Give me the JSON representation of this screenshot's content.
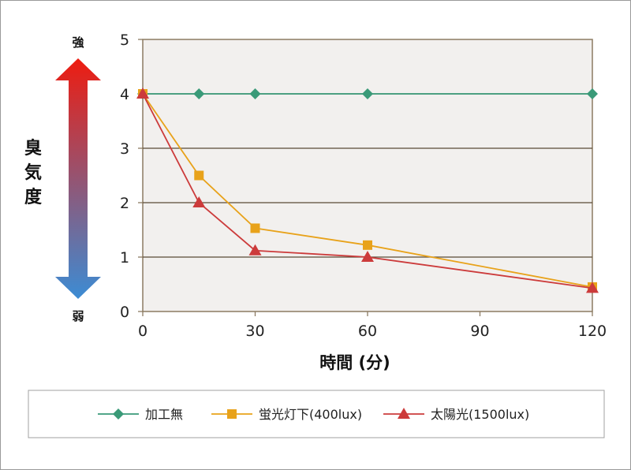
{
  "chart_data": {
    "type": "line",
    "xlabel": "時間 (分)",
    "ylabel": "臭気度",
    "y_strong_label": "強",
    "y_weak_label": "弱",
    "xlim": [
      0,
      120
    ],
    "ylim": [
      0,
      5
    ],
    "x_ticks": [
      0,
      30,
      60,
      90,
      120
    ],
    "y_ticks": [
      0,
      1,
      2,
      3,
      4,
      5
    ],
    "grid": "horizontal",
    "legend_position": "bottom",
    "series": [
      {
        "name": "加工無",
        "marker": "diamond",
        "color": "#3a9a78",
        "x": [
          0,
          15,
          30,
          60,
          120
        ],
        "y": [
          4,
          4,
          4,
          4,
          4
        ]
      },
      {
        "name": "蛍光灯下(400lux)",
        "marker": "square",
        "color": "#e8a21a",
        "x": [
          0,
          15,
          30,
          60,
          120
        ],
        "y": [
          4,
          2.5,
          1.53,
          1.22,
          0.45
        ]
      },
      {
        "name": "太陽光(1500lux)",
        "marker": "triangle",
        "color": "#cc3b3b",
        "x": [
          0,
          15,
          30,
          60,
          120
        ],
        "y": [
          4,
          2.0,
          1.12,
          1.0,
          0.43
        ]
      }
    ]
  },
  "colors": {
    "plot_background": "#f2f0ee",
    "axis": "#8c7b62",
    "arrow_top": "#ee1c10",
    "arrow_bottom": "#3c8cd4"
  }
}
